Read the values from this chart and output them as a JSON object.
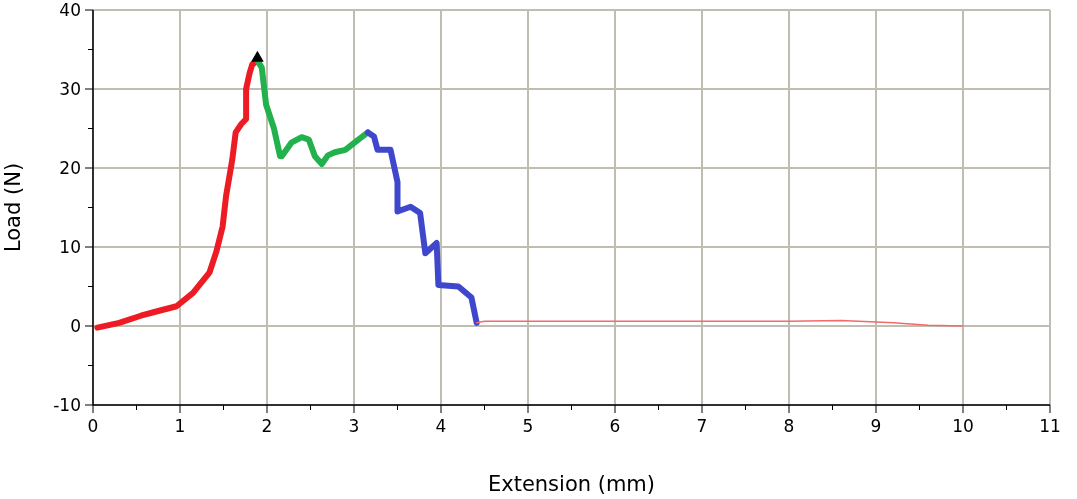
{
  "chart_data": {
    "type": "line",
    "xlabel": "Extension (mm)",
    "ylabel": "Load (N)",
    "xlim": [
      0,
      11
    ],
    "ylim": [
      -10,
      40
    ],
    "xticks": [
      0,
      {
        "value": 0.5,
        "label": null
      },
      1,
      {
        "value": 1.5,
        "label": null
      },
      2,
      {
        "value": 2.5,
        "label": null
      },
      3,
      {
        "value": 3.5,
        "label": null
      },
      4,
      {
        "value": 4.5,
        "label": null
      },
      5,
      {
        "value": 5.5,
        "label": null
      },
      6,
      {
        "value": 6.5,
        "label": null
      },
      7,
      {
        "value": 7.5,
        "label": null
      },
      8,
      {
        "value": 8.5,
        "label": null
      },
      9,
      {
        "value": 9.5,
        "label": null
      },
      10,
      {
        "value": 10.5,
        "label": null
      },
      11
    ],
    "yticks": [
      -10,
      {
        "value": -5,
        "label": null
      },
      0,
      {
        "value": 5,
        "label": null
      },
      10,
      {
        "value": 15,
        "label": null
      },
      20,
      {
        "value": 25,
        "label": null
      },
      30,
      {
        "value": 35,
        "label": null
      },
      40
    ],
    "grid": true,
    "line_style": "solid",
    "series": [
      {
        "color": "#ed1c24",
        "x": [
          0.05,
          0.3,
          0.55,
          0.75,
          0.96,
          1.15,
          1.34,
          1.42,
          1.49,
          1.53,
          1.6,
          1.64,
          1.7,
          1.76,
          1.76,
          1.8,
          1.83,
          1.89
        ],
        "values": [
          -0.2,
          0.4,
          1.3,
          1.9,
          2.5,
          4.2,
          6.8,
          9.5,
          12.6,
          16.5,
          21,
          24.5,
          25.5,
          26.2,
          30,
          32,
          33.1,
          33.6
        ]
      },
      {
        "color": "#22b14c",
        "x": [
          1.89,
          1.94,
          1.99,
          2.08,
          2.15,
          2.17,
          2.28,
          2.4,
          2.48,
          2.55,
          2.63,
          2.7,
          2.78,
          2.9,
          3.05,
          3.16
        ],
        "values": [
          33.6,
          32.7,
          28,
          25,
          21.5,
          21.5,
          23.2,
          23.9,
          23.6,
          21.5,
          20.5,
          21.6,
          22,
          22.3,
          23.6,
          24.5
        ]
      },
      {
        "color": "#3f48cc",
        "x": [
          3.16,
          3.23,
          3.27,
          3.42,
          3.5,
          3.5,
          3.65,
          3.76,
          3.82,
          3.95,
          3.97,
          4.2,
          4.35,
          4.41
        ],
        "values": [
          24.5,
          24,
          22.3,
          22.3,
          18.2,
          14.5,
          15.1,
          14.3,
          9.2,
          10.5,
          5.2,
          5,
          3.6,
          0.4
        ]
      },
      {
        "color": "#f26b6b",
        "x": [
          4.41,
          4.5,
          5,
          6,
          7,
          8,
          8.6,
          9.2,
          9.6,
          10
        ],
        "values": [
          0.4,
          0.6,
          0.6,
          0.6,
          0.6,
          0.6,
          0.7,
          0.4,
          0.1,
          0
        ]
      },
      {
        "type": "scatter",
        "marker": "triangle",
        "color": "#000000",
        "x": [
          1.89
        ],
        "values": [
          33.9
        ]
      }
    ]
  }
}
